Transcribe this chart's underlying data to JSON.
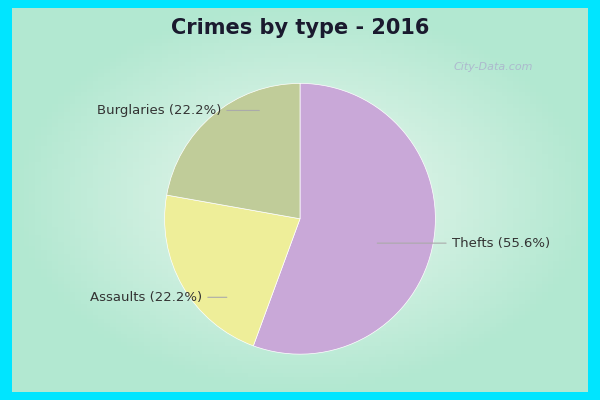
{
  "title": "Crimes by type - 2016",
  "slices": [
    {
      "label": "Thefts (55.6%)",
      "value": 55.6,
      "color": "#C9A8D8"
    },
    {
      "label": "Burglaries (22.2%)",
      "value": 22.2,
      "color": "#EEEE99"
    },
    {
      "label": "Assaults (22.2%)",
      "value": 22.2,
      "color": "#C0CC99"
    }
  ],
  "bg_outer": "#00E5FF",
  "bg_inner_center": "#E8F8F0",
  "bg_inner_edge": "#B0E8D0",
  "title_fontsize": 15,
  "label_fontsize": 9.5,
  "watermark": "City-Data.com",
  "start_angle": 90,
  "title_color": "#1a1a2e"
}
